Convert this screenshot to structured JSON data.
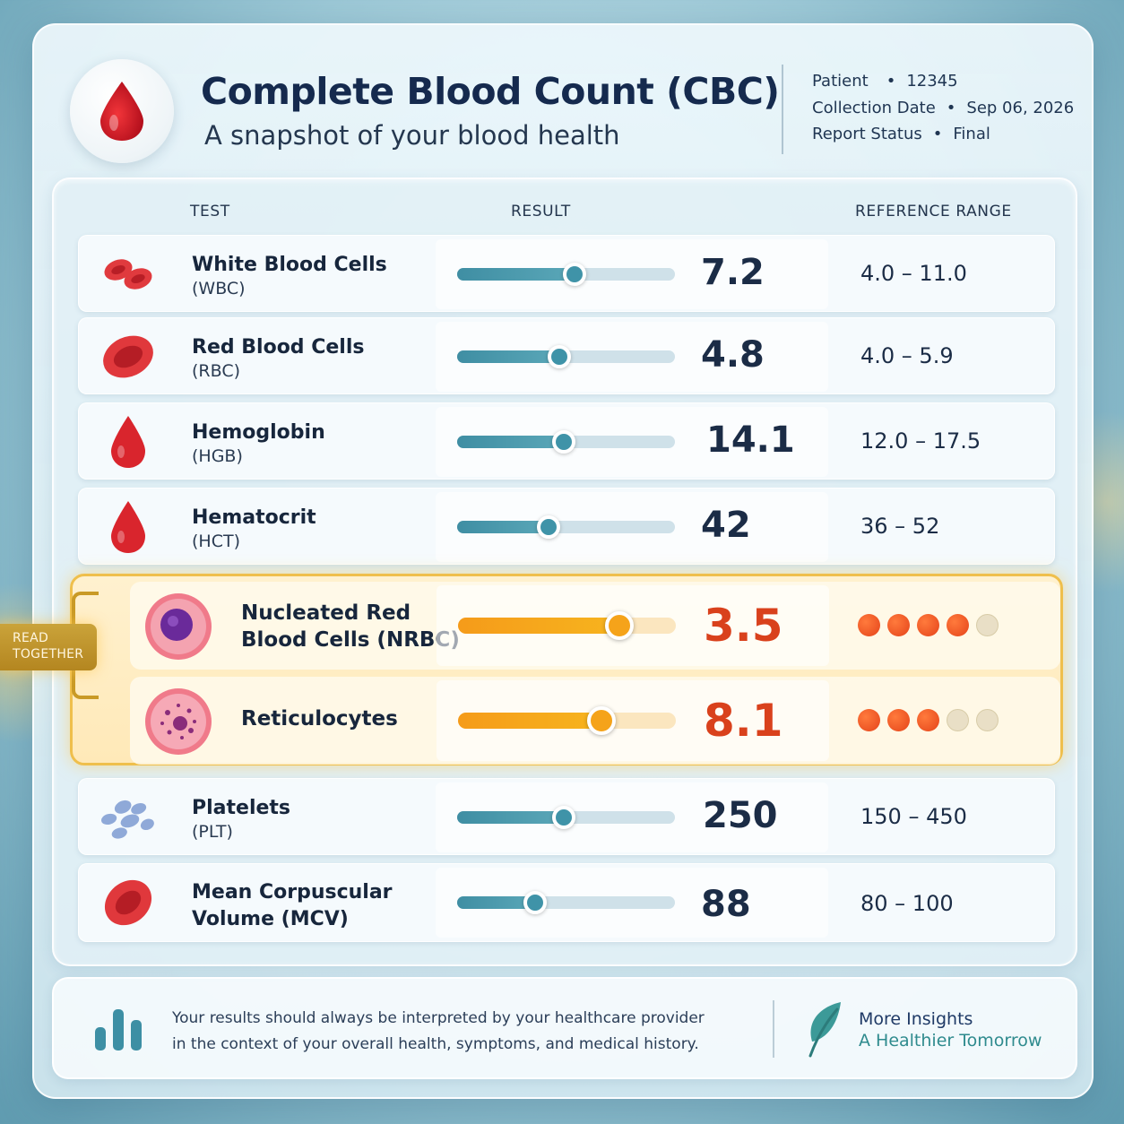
{
  "header": {
    "title": "Complete Blood Count (CBC)",
    "subtitle": "A snapshot of your blood health",
    "meta": [
      {
        "label": "Patient",
        "sep": "•",
        "value": "12345"
      },
      {
        "label": "Collection Date",
        "sep": "•",
        "value": "Sep 06, 2026"
      },
      {
        "label": "Report Status",
        "sep": "•",
        "value": "Final"
      }
    ]
  },
  "columns": {
    "test": "TEST",
    "result": "RESULT",
    "reference": "REFERENCE RANGE"
  },
  "rows": [
    {
      "name": "White Blood Cells",
      "abbr": "(WBC)",
      "value": "7.2",
      "reference": "4.0 – 11.0",
      "level": 0.54,
      "icon": "wbc-cells-icon"
    },
    {
      "name": "Red Blood Cells",
      "abbr": "(RBC)",
      "value": "4.8",
      "reference": "4.0 – 5.9",
      "level": 0.47,
      "icon": "red-blood-cell-icon"
    },
    {
      "name": "Hemoglobin",
      "abbr": "(HGB)",
      "value": "14.1",
      "reference": "12.0 – 17.5",
      "level": 0.49,
      "icon": "blood-drop-icon"
    },
    {
      "name": "Hematocrit",
      "abbr": "(HCT)",
      "value": "42",
      "reference": "36 – 52",
      "level": 0.42,
      "icon": "blood-drop-icon"
    },
    {
      "name": "Platelets",
      "abbr": "(PLT)",
      "value": "250",
      "reference": "150 – 450",
      "level": 0.49,
      "icon": "platelets-icon"
    },
    {
      "name_line1": "Mean Corpuscular",
      "name_line2": "Volume (MCV)",
      "value": "88",
      "reference": "80 – 100",
      "level": 0.36,
      "icon": "red-blood-cell-icon"
    }
  ],
  "highlighted": {
    "badge_line1": "READ",
    "badge_line2": "TOGETHER",
    "rows": [
      {
        "name_line1": "Nucleated Red",
        "name_line2": "Blood Cells (NRBC)",
        "value": "3.5",
        "level": 0.74,
        "rating": 4,
        "rating_max": 5,
        "icon": "nucleated-cell-icon"
      },
      {
        "name_line1": "Reticulocytes",
        "name_line2": "",
        "value": "8.1",
        "level": 0.66,
        "rating": 3,
        "rating_max": 5,
        "icon": "reticulocyte-icon"
      }
    ]
  },
  "footer": {
    "line1": "Your results should always be interpreted by your healthcare provider",
    "line2": "in the context of your overall health, symptoms, and medical history.",
    "link_title": "More Insights",
    "link_sub": "A Healthier Tomorrow",
    "icons": [
      "bar-chart-icon",
      "leaf-icon"
    ]
  },
  "colors": {
    "accent_teal": "#3f93a8",
    "alert_orange": "#f5a31a",
    "alert_red": "#d9411c",
    "title_navy": "#152a4e"
  }
}
